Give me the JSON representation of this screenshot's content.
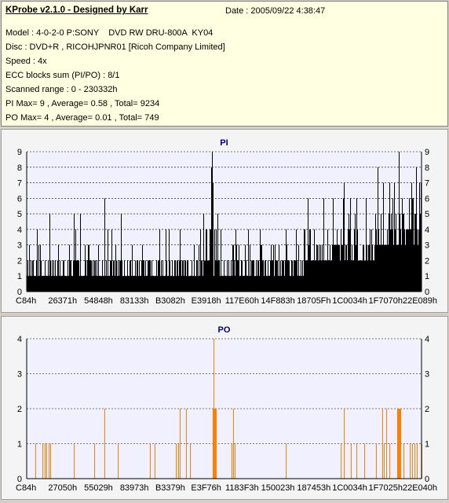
{
  "app": {
    "title": "KProbe v2.1.0 - Designed by Karr",
    "date": "Date : 2005/09/22 4:38:47"
  },
  "info": {
    "model": "Model : 4-0-2-0 P:SONY    DVD RW DRU-800A  KY04",
    "disc": "Disc : DVD+R , RICOHJPNR01 [Ricoh Company Limited]",
    "speed": "Speed : 4x",
    "ecc": "ECC blocks sum (PI/PO) : 8/1",
    "scanned": "Scanned range : 0 - 230332h",
    "pi": "PI Max= 9 , Average= 0.58 , Total= 9234",
    "po": "PO Max= 4 , Average= 0.01 , Total= 749"
  },
  "colors": {
    "pi_bar": "#000000",
    "po_bar": "#ff7f00",
    "plot_bg": "#f0f0ff",
    "grid": "#000000",
    "title": "#000080"
  },
  "chart_data": [
    {
      "type": "bar",
      "title": "PI",
      "ylim": [
        0,
        9
      ],
      "yticks": [
        "0",
        "1",
        "2",
        "3",
        "4",
        "5",
        "6",
        "7",
        "8",
        "9"
      ],
      "xticks": [
        "C84h",
        "26371h",
        "54848h",
        "83133h",
        "B3082h",
        "E3918h",
        "117E60h",
        "14F883h",
        "18705Fh",
        "1C0034h",
        "1F7070h",
        "22E089h"
      ],
      "grid": "dashed horizontal",
      "max": 9,
      "average": 0.58,
      "total": 9234
    },
    {
      "type": "bar",
      "title": "PO",
      "ylim": [
        0,
        4
      ],
      "yticks": [
        "0",
        "1",
        "2",
        "3",
        "4"
      ],
      "xticks": [
        "C84h",
        "27050h",
        "55029h",
        "83973h",
        "B3379h",
        "E3F76h",
        "1183F3h",
        "150023h",
        "187453h",
        "1C0034h",
        "1F7025h",
        "22E040h"
      ],
      "grid": "dashed horizontal",
      "max": 4,
      "average": 0.01,
      "total": 749
    }
  ]
}
